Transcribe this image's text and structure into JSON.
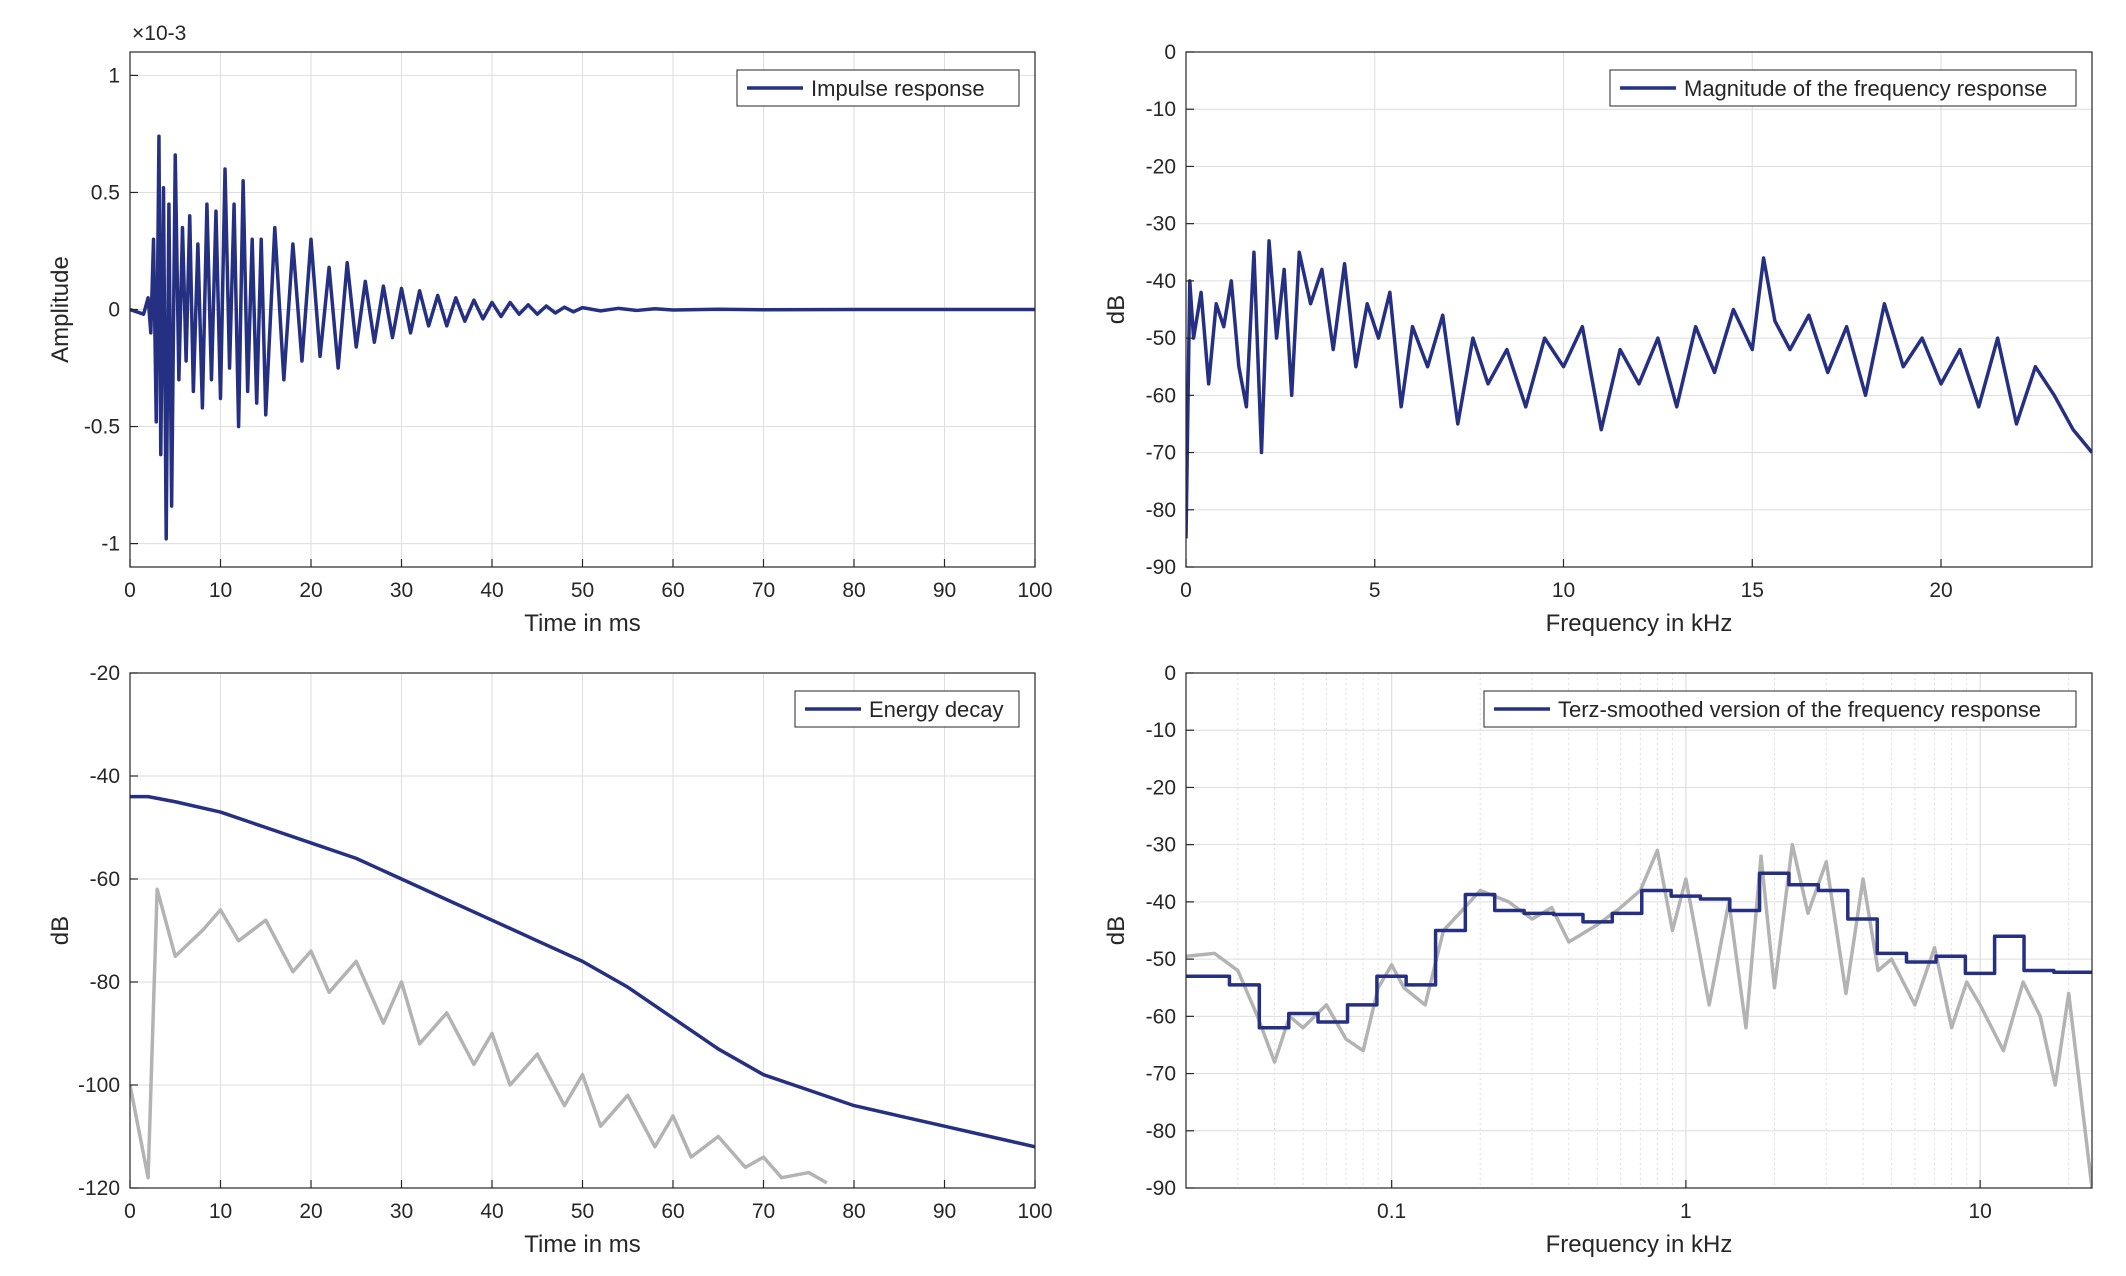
{
  "figure": {
    "colors": {
      "series": "#253083",
      "reference": "#b3b3b3",
      "grid": "#dedede",
      "axis": "#262626"
    }
  },
  "chart_data": [
    {
      "id": "impulse",
      "type": "line",
      "title": "",
      "xlabel": "Time in ms",
      "ylabel": "Amplitude",
      "exponent_label": "×10-3",
      "xlim": [
        0,
        100
      ],
      "ylim": [
        -1.1,
        1.1
      ],
      "y_scale": "linear",
      "x_ticks": [
        0,
        10,
        20,
        30,
        40,
        50,
        60,
        70,
        80,
        90,
        100
      ],
      "x_tick_labels": [
        "0",
        "10",
        "20",
        "30",
        "40",
        "50",
        "60",
        "70",
        "80",
        "90",
        "100"
      ],
      "y_ticks": [
        1,
        0.5,
        0,
        -0.5,
        -1
      ],
      "y_tick_labels": [
        "1",
        "0.5",
        "0",
        "-0.5",
        "-1"
      ],
      "legend": {
        "placement": "top-right",
        "entries": [
          "Impulse response"
        ]
      },
      "grid": true,
      "series": [
        {
          "name": "Impulse response",
          "x": [
            0,
            1.5,
            2.0,
            2.3,
            2.6,
            2.9,
            3.2,
            3.4,
            3.7,
            4.0,
            4.3,
            4.6,
            5.0,
            5.4,
            5.8,
            6.2,
            6.6,
            7.0,
            7.5,
            8.0,
            8.5,
            9.0,
            9.5,
            10.0,
            10.5,
            11.0,
            11.5,
            12.0,
            12.5,
            13.0,
            13.5,
            14.0,
            14.5,
            15.0,
            16.0,
            17.0,
            18.0,
            19.0,
            20.0,
            21.0,
            22.0,
            23.0,
            24.0,
            25.0,
            26.0,
            27.0,
            28.0,
            29.0,
            30.0,
            31.0,
            32.0,
            33.0,
            34.0,
            35.0,
            36.0,
            37.0,
            38.0,
            39.0,
            40.0,
            41.0,
            42.0,
            43.0,
            44.0,
            45.0,
            46.0,
            47.0,
            48.0,
            49.0,
            50.0,
            52.0,
            54.0,
            56.0,
            58.0,
            60.0,
            65.0,
            70.0,
            80.0,
            90.0,
            100.0
          ],
          "values": [
            0,
            -0.02,
            0.05,
            -0.1,
            0.3,
            -0.48,
            0.74,
            -0.62,
            0.52,
            -0.98,
            0.45,
            -0.84,
            0.66,
            -0.3,
            0.35,
            -0.22,
            0.4,
            -0.35,
            0.28,
            -0.42,
            0.45,
            -0.3,
            0.42,
            -0.38,
            0.6,
            -0.25,
            0.45,
            -0.5,
            0.55,
            -0.35,
            0.3,
            -0.4,
            0.3,
            -0.45,
            0.35,
            -0.3,
            0.28,
            -0.22,
            0.3,
            -0.2,
            0.18,
            -0.25,
            0.2,
            -0.16,
            0.12,
            -0.14,
            0.1,
            -0.12,
            0.09,
            -0.1,
            0.08,
            -0.07,
            0.06,
            -0.07,
            0.05,
            -0.05,
            0.04,
            -0.04,
            0.03,
            -0.03,
            0.03,
            -0.02,
            0.02,
            -0.02,
            0.015,
            -0.015,
            0.01,
            -0.01,
            0.008,
            -0.006,
            0.005,
            -0.004,
            0.003,
            -0.002,
            0.001,
            -0.001,
            0.0,
            0.0,
            0.0
          ]
        }
      ]
    },
    {
      "id": "magnitude",
      "type": "line",
      "title": "",
      "xlabel": "Frequency in kHz",
      "ylabel": "dB",
      "xlim": [
        0,
        24
      ],
      "ylim": [
        -90,
        0
      ],
      "y_scale": "linear",
      "x_ticks": [
        0,
        5,
        10,
        15,
        20
      ],
      "x_tick_labels": [
        "0",
        "5",
        "10",
        "15",
        "20"
      ],
      "y_ticks": [
        0,
        -10,
        -20,
        -30,
        -40,
        -50,
        -60,
        -70,
        -80,
        -90
      ],
      "y_tick_labels": [
        "0",
        "-10",
        "-20",
        "-30",
        "-40",
        "-50",
        "-60",
        "-70",
        "-80",
        "-90"
      ],
      "legend": {
        "placement": "top-right",
        "entries": [
          "Magnitude of the frequency response"
        ]
      },
      "grid": true,
      "series": [
        {
          "name": "Magnitude of the frequency response",
          "x": [
            0,
            0.1,
            0.2,
            0.4,
            0.6,
            0.8,
            1.0,
            1.2,
            1.4,
            1.6,
            1.8,
            2.0,
            2.2,
            2.4,
            2.6,
            2.8,
            3.0,
            3.3,
            3.6,
            3.9,
            4.2,
            4.5,
            4.8,
            5.1,
            5.4,
            5.7,
            6.0,
            6.4,
            6.8,
            7.2,
            7.6,
            8.0,
            8.5,
            9.0,
            9.5,
            10.0,
            10.5,
            11.0,
            11.5,
            12.0,
            12.5,
            13.0,
            13.5,
            14.0,
            14.5,
            15.0,
            15.3,
            15.6,
            16.0,
            16.5,
            17.0,
            17.5,
            18.0,
            18.5,
            19.0,
            19.5,
            20.0,
            20.5,
            21.0,
            21.5,
            22.0,
            22.5,
            23.0,
            23.5,
            24.0
          ],
          "values": [
            -85,
            -40,
            -50,
            -42,
            -58,
            -44,
            -48,
            -40,
            -55,
            -62,
            -35,
            -70,
            -33,
            -50,
            -38,
            -60,
            -35,
            -44,
            -38,
            -52,
            -37,
            -55,
            -44,
            -50,
            -42,
            -62,
            -48,
            -55,
            -46,
            -65,
            -50,
            -58,
            -52,
            -62,
            -50,
            -55,
            -48,
            -66,
            -52,
            -58,
            -50,
            -62,
            -48,
            -56,
            -45,
            -52,
            -36,
            -47,
            -52,
            -46,
            -56,
            -48,
            -60,
            -44,
            -55,
            -50,
            -58,
            -52,
            -62,
            -50,
            -65,
            -55,
            -60,
            -66,
            -70
          ]
        }
      ]
    },
    {
      "id": "energy",
      "type": "line",
      "title": "",
      "xlabel": "Time in ms",
      "ylabel": "dB",
      "xlim": [
        0,
        100
      ],
      "ylim": [
        -120,
        -20
      ],
      "y_scale": "linear",
      "x_ticks": [
        0,
        10,
        20,
        30,
        40,
        50,
        60,
        70,
        80,
        90,
        100
      ],
      "x_tick_labels": [
        "0",
        "10",
        "20",
        "30",
        "40",
        "50",
        "60",
        "70",
        "80",
        "90",
        "100"
      ],
      "y_ticks": [
        -20,
        -40,
        -60,
        -80,
        -100,
        -120
      ],
      "y_tick_labels": [
        "-20",
        "-40",
        "-60",
        "-80",
        "-100",
        "-120"
      ],
      "legend": {
        "placement": "top-right",
        "entries": [
          "Energy decay"
        ]
      },
      "grid": true,
      "series": [
        {
          "name": "Energy decay",
          "x": [
            0,
            2,
            5,
            10,
            15,
            20,
            25,
            30,
            35,
            40,
            45,
            50,
            55,
            60,
            65,
            70,
            75,
            80,
            85,
            90,
            95,
            100
          ],
          "values": [
            -44,
            -44,
            -45,
            -47,
            -50,
            -53,
            -56,
            -60,
            -64,
            -68,
            -72,
            -76,
            -81,
            -87,
            -93,
            -98,
            -101,
            -104,
            -106,
            -108,
            -110,
            -112
          ]
        },
        {
          "name": "",
          "reference": true,
          "x": [
            0,
            2,
            3,
            5,
            8,
            10,
            12,
            15,
            18,
            20,
            22,
            25,
            28,
            30,
            32,
            35,
            38,
            40,
            42,
            45,
            48,
            50,
            52,
            55,
            58,
            60,
            62,
            65,
            68,
            70,
            72,
            75,
            77
          ],
          "values": [
            -100,
            -118,
            -62,
            -75,
            -70,
            -66,
            -72,
            -68,
            -78,
            -74,
            -82,
            -76,
            -88,
            -80,
            -92,
            -86,
            -96,
            -90,
            -100,
            -94,
            -104,
            -98,
            -108,
            -102,
            -112,
            -106,
            -114,
            -110,
            -116,
            -114,
            -118,
            -117,
            -119
          ]
        }
      ]
    },
    {
      "id": "terz",
      "type": "line",
      "title": "",
      "xlabel": "Frequency in kHz",
      "ylabel": "dB",
      "xlim": [
        0.02,
        24
      ],
      "ylim": [
        -90,
        0
      ],
      "x_scale": "log",
      "x_ticks": [
        0.1,
        1,
        10
      ],
      "x_tick_labels": [
        "0.1",
        "1",
        "10"
      ],
      "y_ticks": [
        0,
        -10,
        -20,
        -30,
        -40,
        -50,
        -60,
        -70,
        -80,
        -90
      ],
      "y_tick_labels": [
        "0",
        "-10",
        "-20",
        "-30",
        "-40",
        "-50",
        "-60",
        "-70",
        "-80",
        "-90"
      ],
      "legend": {
        "placement": "top-right",
        "entries": [
          "Terz-smoothed version of the frequency response"
        ]
      },
      "grid": true,
      "series": [
        {
          "name": "Terz-smoothed version of the frequency response",
          "step": true,
          "x": [
            0.02,
            0.0281,
            0.0355,
            0.0447,
            0.0562,
            0.0708,
            0.0891,
            0.112,
            0.141,
            0.178,
            0.224,
            0.282,
            0.355,
            0.447,
            0.562,
            0.708,
            0.891,
            1.12,
            1.41,
            1.78,
            2.24,
            2.82,
            3.55,
            4.47,
            5.62,
            7.08,
            8.91,
            11.2,
            14.1,
            17.8,
            24
          ],
          "values": [
            -53,
            -54.5,
            -62,
            -59.5,
            -61,
            -58,
            -53,
            -54.5,
            -45,
            -38.7,
            -41.5,
            -42,
            -42.2,
            -43.5,
            -42,
            -38,
            -39,
            -39.5,
            -41.5,
            -35,
            -37,
            -38,
            -43,
            -49,
            -50.5,
            -49.5,
            -52.5,
            -46,
            -52,
            -52.3,
            -52.3
          ]
        },
        {
          "name": "",
          "reference": true,
          "x": [
            0.02,
            0.025,
            0.03,
            0.035,
            0.04,
            0.045,
            0.05,
            0.06,
            0.07,
            0.08,
            0.09,
            0.1,
            0.11,
            0.13,
            0.15,
            0.17,
            0.2,
            0.25,
            0.3,
            0.35,
            0.4,
            0.5,
            0.6,
            0.7,
            0.8,
            0.9,
            1.0,
            1.2,
            1.4,
            1.6,
            1.8,
            2.0,
            2.3,
            2.6,
            3.0,
            3.5,
            4.0,
            4.5,
            5.0,
            6.0,
            7.0,
            8.0,
            9.0,
            10.0,
            12.0,
            14.0,
            16.0,
            18.0,
            20.0,
            24.0
          ],
          "values": [
            -49.5,
            -49,
            -52,
            -60,
            -68,
            -60,
            -62,
            -58,
            -64,
            -66,
            -55,
            -51,
            -55,
            -58,
            -45,
            -42,
            -38,
            -40,
            -43,
            -41,
            -47,
            -44,
            -41,
            -38,
            -31,
            -45,
            -36,
            -58,
            -40,
            -62,
            -32,
            -55,
            -30,
            -42,
            -33,
            -56,
            -36,
            -52,
            -50,
            -58,
            -48,
            -62,
            -54,
            -58,
            -66,
            -54,
            -60,
            -72,
            -56,
            -90
          ]
        }
      ]
    }
  ]
}
